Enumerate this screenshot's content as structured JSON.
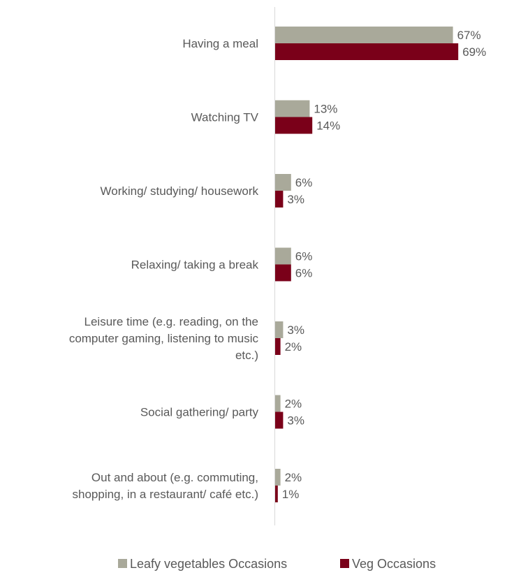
{
  "chart_data": {
    "type": "bar",
    "orientation": "horizontal",
    "categories": [
      [
        "Having a meal"
      ],
      [
        "Watching TV"
      ],
      [
        "Working/ studying/ housework"
      ],
      [
        "Relaxing/ taking a break"
      ],
      [
        "Leisure time (e.g. reading, on the",
        "computer gaming, listening to music",
        "etc.)"
      ],
      [
        "Social gathering/ party"
      ],
      [
        "Out and about (e.g. commuting,",
        "shopping, in a restaurant/ café etc.)"
      ]
    ],
    "series": [
      {
        "name": "Leafy vegetables Occasions",
        "color": "#a9a99a",
        "values": [
          67,
          13,
          6,
          6,
          3,
          2,
          2
        ],
        "labels": [
          "67%",
          "13%",
          "6%",
          "6%",
          "3%",
          "2%",
          "2%"
        ]
      },
      {
        "name": "Veg Occasions",
        "color": "#7a0019",
        "values": [
          69,
          14,
          3,
          6,
          2,
          3,
          1
        ],
        "labels": [
          "69%",
          "14%",
          "3%",
          "6%",
          "2%",
          "3%",
          "1%"
        ]
      }
    ],
    "value_unit": "%",
    "grid": false,
    "legend_position": "bottom"
  }
}
